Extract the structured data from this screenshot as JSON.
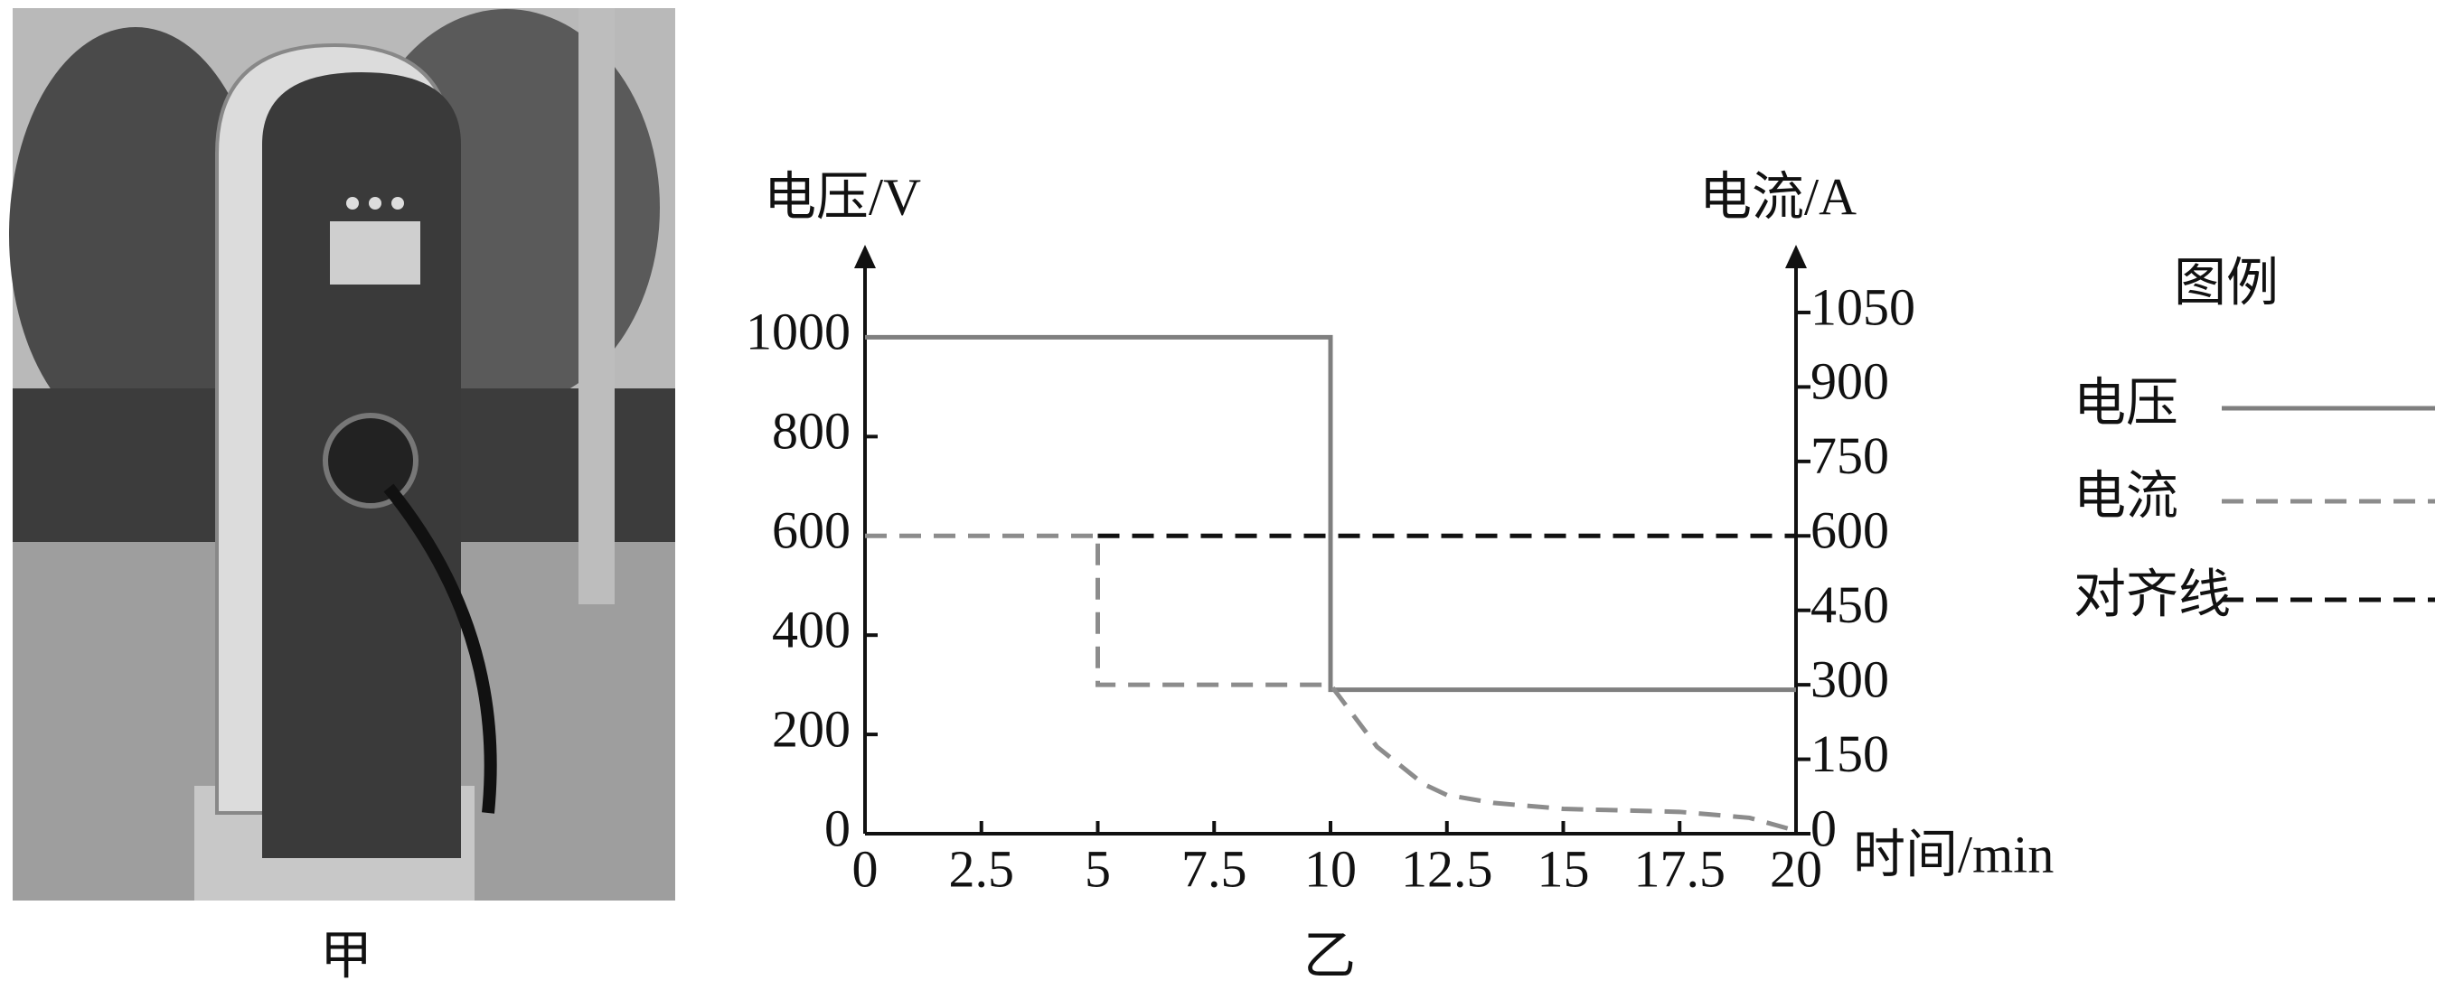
{
  "chart_data": {
    "type": "line",
    "photo_caption": "甲",
    "chart_caption": "乙",
    "ylabel": "电压/V",
    "y2label": "电流/A",
    "xlabel": "时间/min",
    "legend_title": "图例",
    "xlim": [
      0,
      20
    ],
    "xticks": [
      0,
      2.5,
      5,
      7.5,
      10,
      12.5,
      15,
      17.5,
      20
    ],
    "ylim": [
      0,
      1150
    ],
    "yticks": [
      0,
      200,
      400,
      600,
      800,
      1000
    ],
    "y2lim": [
      0,
      1150
    ],
    "y2ticks": [
      0,
      150,
      300,
      450,
      600,
      750,
      900,
      1050
    ],
    "legend": "right",
    "series": [
      {
        "name": "电压",
        "color": "#7f7f7f",
        "style": "solid",
        "x": [
          0,
          10,
          10,
          20
        ],
        "values": [
          1000,
          1000,
          290,
          290
        ]
      },
      {
        "name": "电流",
        "color": "#8c8c8c",
        "style": "dashed",
        "axis": "y2",
        "x": [
          0,
          5,
          5,
          10,
          11,
          12,
          12.5,
          13.5,
          15,
          17.5,
          19,
          20
        ],
        "values": [
          600,
          600,
          300,
          300,
          175,
          100,
          78,
          62,
          50,
          44,
          32,
          6
        ]
      },
      {
        "name": "对齐线",
        "color": "#111111",
        "style": "dashed",
        "x": [
          5,
          20
        ],
        "values": [
          600,
          600
        ]
      }
    ]
  }
}
